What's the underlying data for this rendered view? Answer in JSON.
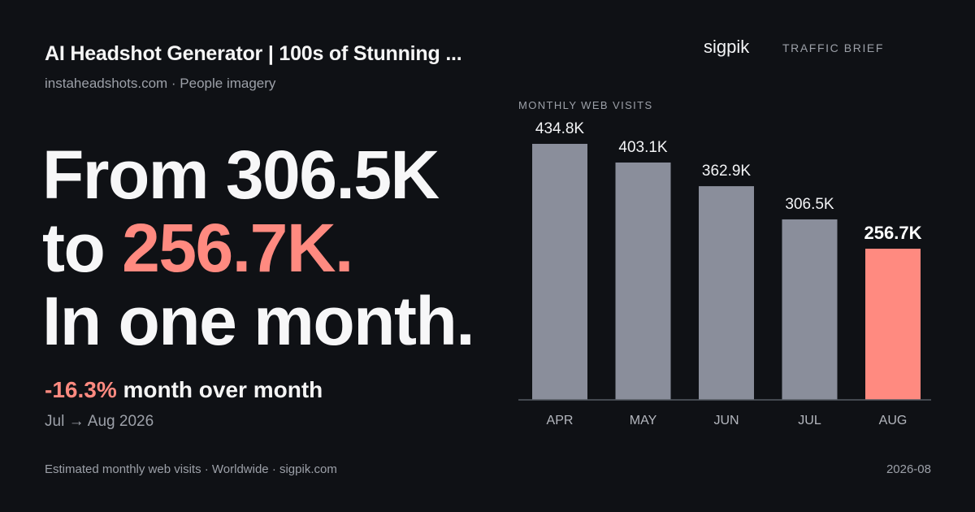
{
  "header": {
    "title": "AI Headshot Generator | 100s of Stunning ...",
    "subtitle": "instaheadshots.com · People imagery"
  },
  "brand": {
    "name": "sigpik",
    "tag": "TRAFFIC BRIEF"
  },
  "headline": {
    "line1": "From 306.5K",
    "line2_prefix": "to ",
    "line2_highlight": "256.7K.",
    "line3": "In one month."
  },
  "change": {
    "pct": "-16.3%",
    "text": " month over month"
  },
  "period": "Jul → Aug 2026",
  "footer": {
    "left": "Estimated monthly web visits · Worldwide · sigpik.com",
    "right": "2026-08"
  },
  "colors": {
    "bar": "#8a8e9b",
    "highlight": "#ff8a80",
    "background": "#0f1115",
    "axis": "#555a63"
  },
  "chart_data": {
    "type": "bar",
    "title": "MONTHLY WEB VISITS",
    "categories": [
      "APR",
      "MAY",
      "JUN",
      "JUL",
      "AUG"
    ],
    "values": [
      434.8,
      403.1,
      362.9,
      306.5,
      256.7
    ],
    "value_labels": [
      "434.8K",
      "403.1K",
      "362.9K",
      "306.5K",
      "256.7K"
    ],
    "unit": "K",
    "ylim": [
      0,
      434.8
    ],
    "highlight_index": 4,
    "grid": false,
    "legend": "none"
  }
}
